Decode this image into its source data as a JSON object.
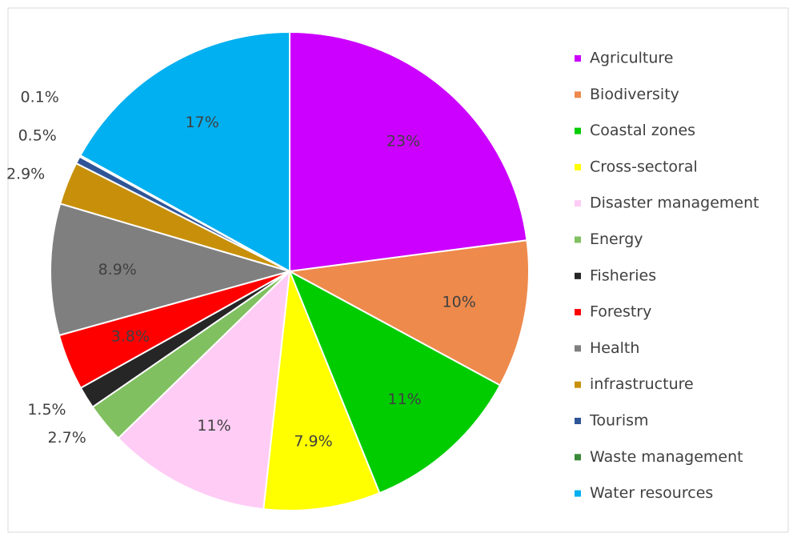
{
  "chart_data": {
    "type": "pie",
    "categories": [
      "Agriculture",
      "Biodiversity",
      "Coastal zones",
      "Cross-sectoral",
      "Disaster management",
      "Energy",
      "Fisheries",
      "Forestry",
      "Health",
      "infrastructure",
      "Tourism",
      "Waste management",
      "Water resources"
    ],
    "values": [
      23,
      10,
      11,
      7.9,
      11,
      2.7,
      1.5,
      3.8,
      8.9,
      2.9,
      0.5,
      0.1,
      17
    ],
    "value_labels": [
      "23%",
      "10%",
      "11%",
      "7.9%",
      "11%",
      "2.7%",
      "1.5%",
      "3.8%",
      "8.9%",
      "2.9%",
      "0.5%",
      "0.1%",
      "17%"
    ],
    "colors": [
      "#cc00ff",
      "#ee8a4c",
      "#00cc00",
      "#ffff00",
      "#ffccf5",
      "#80c060",
      "#262626",
      "#ff0000",
      "#7f7f7f",
      "#c8900a",
      "#2f5597",
      "#3a8a3a",
      "#00b0f0"
    ],
    "legend": "right"
  }
}
